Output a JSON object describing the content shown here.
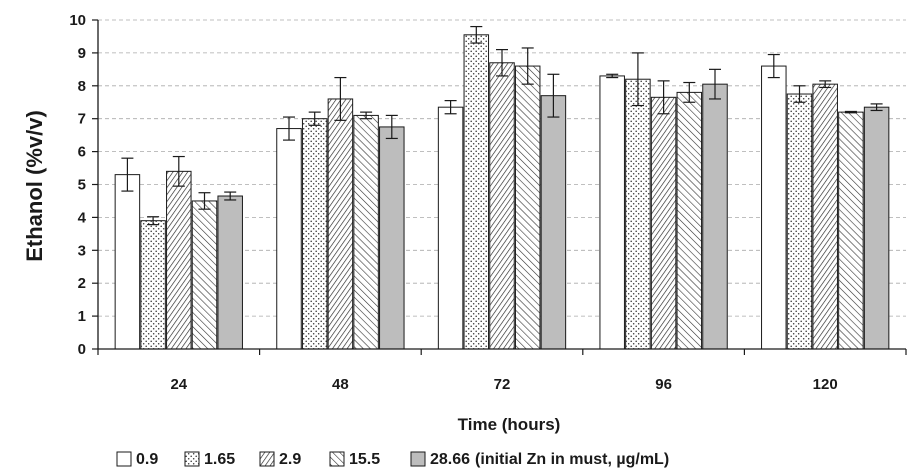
{
  "chart_data": {
    "type": "bar",
    "title": "",
    "xlabel": "Time (hours)",
    "ylabel": "Ethanol (%v/v)",
    "categories": [
      "24",
      "48",
      "72",
      "96",
      "120"
    ],
    "ylim": [
      0,
      10
    ],
    "yticks": [
      "0",
      "1",
      "2",
      "3",
      "4",
      "5",
      "6",
      "7",
      "8",
      "9",
      "10"
    ],
    "grid": "horizontal dashed",
    "legend_position": "bottom",
    "legend_suffix": "(initial Zn in must, µg/mL)",
    "series": [
      {
        "name": "0.9",
        "pattern": "white",
        "values": [
          5.3,
          6.7,
          7.35,
          8.3,
          8.6
        ],
        "errors": [
          0.5,
          0.35,
          0.2,
          0.05,
          0.35
        ]
      },
      {
        "name": "1.65",
        "pattern": "dots",
        "values": [
          3.9,
          7.0,
          9.55,
          8.2,
          7.75
        ],
        "errors": [
          0.12,
          0.2,
          0.25,
          0.8,
          0.25
        ]
      },
      {
        "name": "2.9",
        "pattern": "dense-diagonal",
        "values": [
          5.4,
          7.6,
          8.7,
          7.65,
          8.05
        ],
        "errors": [
          0.45,
          0.65,
          0.4,
          0.5,
          0.1
        ]
      },
      {
        "name": "15.5",
        "pattern": "light-diagonal",
        "values": [
          4.5,
          7.1,
          8.6,
          7.8,
          7.2
        ],
        "errors": [
          0.25,
          0.1,
          0.55,
          0.3,
          0.02
        ]
      },
      {
        "name": "28.66",
        "pattern": "gray",
        "values": [
          4.65,
          6.75,
          7.7,
          8.05,
          7.35
        ],
        "errors": [
          0.12,
          0.35,
          0.65,
          0.45,
          0.1
        ]
      }
    ]
  },
  "colors": {
    "axis": "#1a1a1a",
    "gray_fill": "#bdbdbd",
    "grid": "#aaaaaa"
  }
}
